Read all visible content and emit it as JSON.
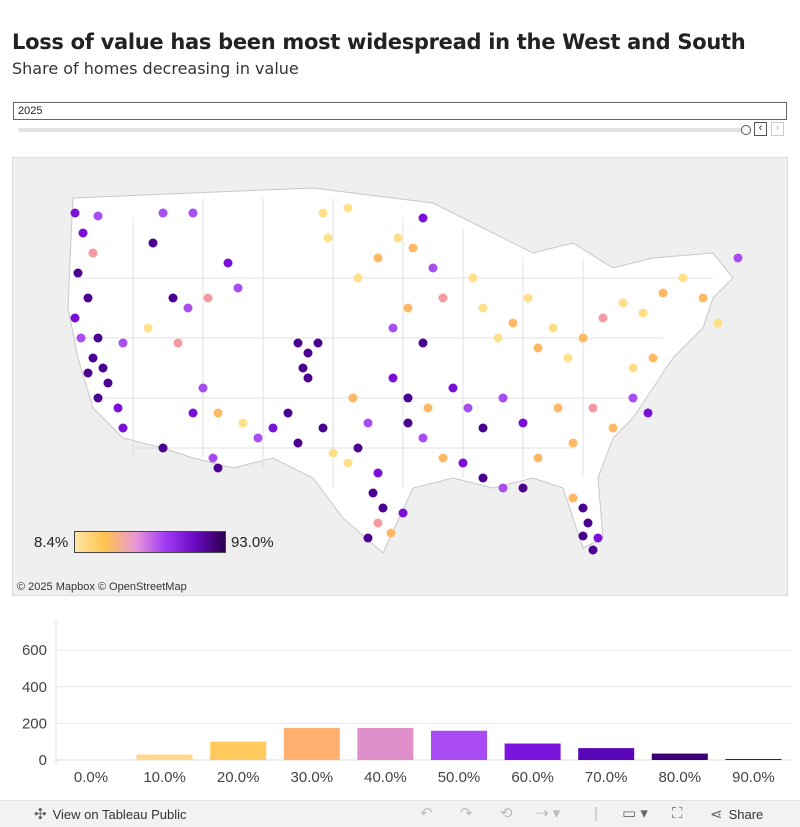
{
  "header": {
    "title": "Loss of value has been most widespread in the West and South",
    "subtitle": "Share of homes decreasing in value"
  },
  "filter": {
    "year_value": "2025",
    "prev_icon": "chevron-left-icon",
    "next_icon": "chevron-right-icon"
  },
  "map": {
    "legend_min": "8.4%",
    "legend_max": "93.0%",
    "attribution": "© 2025 Mapbox  © OpenStreetMap",
    "colors": {
      "low": "#ffe08a",
      "mid_low": "#ffb866",
      "mid": "#f59aa0",
      "mid_high": "#a84df0",
      "high": "#7a10d8",
      "very_high": "#4a0090"
    }
  },
  "chart_data": {
    "type": "bar",
    "categories": [
      "0.0%",
      "10.0%",
      "20.0%",
      "30.0%",
      "40.0%",
      "50.0%",
      "60.0%",
      "70.0%",
      "80.0%",
      "90.0%"
    ],
    "values": [
      0,
      30,
      100,
      175,
      175,
      160,
      90,
      65,
      35,
      5
    ],
    "colors": [
      "#ffe9b0",
      "#ffd88c",
      "#ffc95c",
      "#ffaf70",
      "#df8fca",
      "#a94bf5",
      "#7b14dc",
      "#5a06b8",
      "#3c0076",
      "#2a0050"
    ],
    "y_ticks": [
      "0",
      "200",
      "400",
      "600"
    ],
    "ylim": [
      0,
      700
    ],
    "title": "",
    "xlabel": "",
    "ylabel": ""
  },
  "toolbar": {
    "view_label": "View on Tableau Public",
    "share_label": "Share",
    "icons": [
      "tableau-icon",
      "undo-icon",
      "redo-icon",
      "revert-icon",
      "refresh-icon",
      "present-icon",
      "fullscreen-icon",
      "share-icon"
    ]
  }
}
